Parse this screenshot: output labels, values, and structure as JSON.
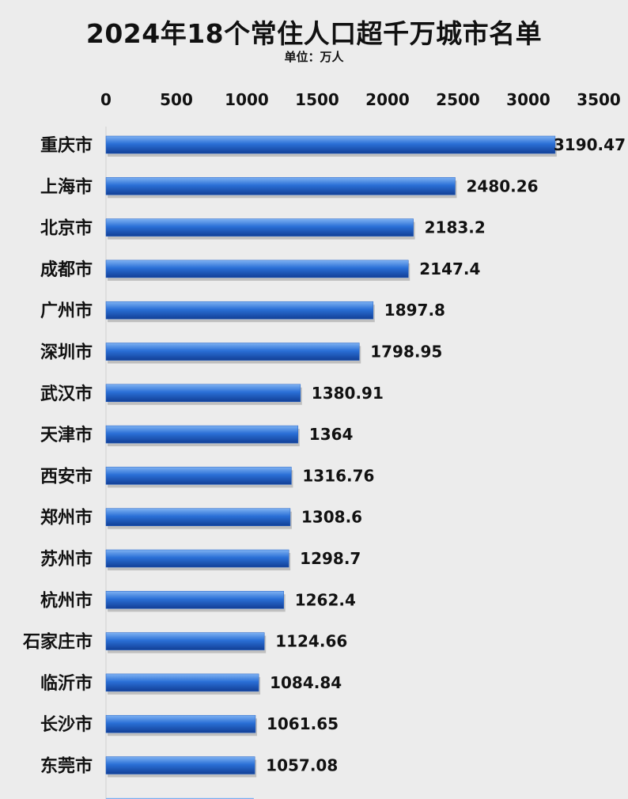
{
  "chart_data": {
    "type": "bar",
    "orientation": "horizontal",
    "title": "2024年18个常住人口超千万城市名单",
    "subtitle": "单位：万人",
    "xlim": [
      0,
      3500
    ],
    "ticks": [
      0,
      500,
      1000,
      1500,
      2000,
      2500,
      3000,
      3500
    ],
    "grid": false,
    "categories": [
      "重庆市",
      "上海市",
      "北京市",
      "成都市",
      "广州市",
      "深圳市",
      "武汉市",
      "天津市",
      "西安市",
      "郑州市",
      "苏州市",
      "杭州市",
      "石家庄市",
      "临沂市",
      "长沙市",
      "东莞市"
    ],
    "values": [
      3190.47,
      2480.26,
      2183.2,
      2147.4,
      1897.8,
      1798.95,
      1380.91,
      1364,
      1316.76,
      1308.6,
      1298.7,
      1262.4,
      1124.66,
      1084.84,
      1061.65,
      1057.08
    ],
    "value_labels": [
      "3190.47",
      "2480.26",
      "2183.2",
      "2147.4",
      "1897.8",
      "1798.95",
      "1380.91",
      "1364",
      "1316.76",
      "1308.6",
      "1298.7",
      "1262.4",
      "1124.66",
      "1084.84",
      "1061.65",
      "1057.08"
    ],
    "partial_bar_value": 1050,
    "bar_color": "#1f5fc6"
  }
}
